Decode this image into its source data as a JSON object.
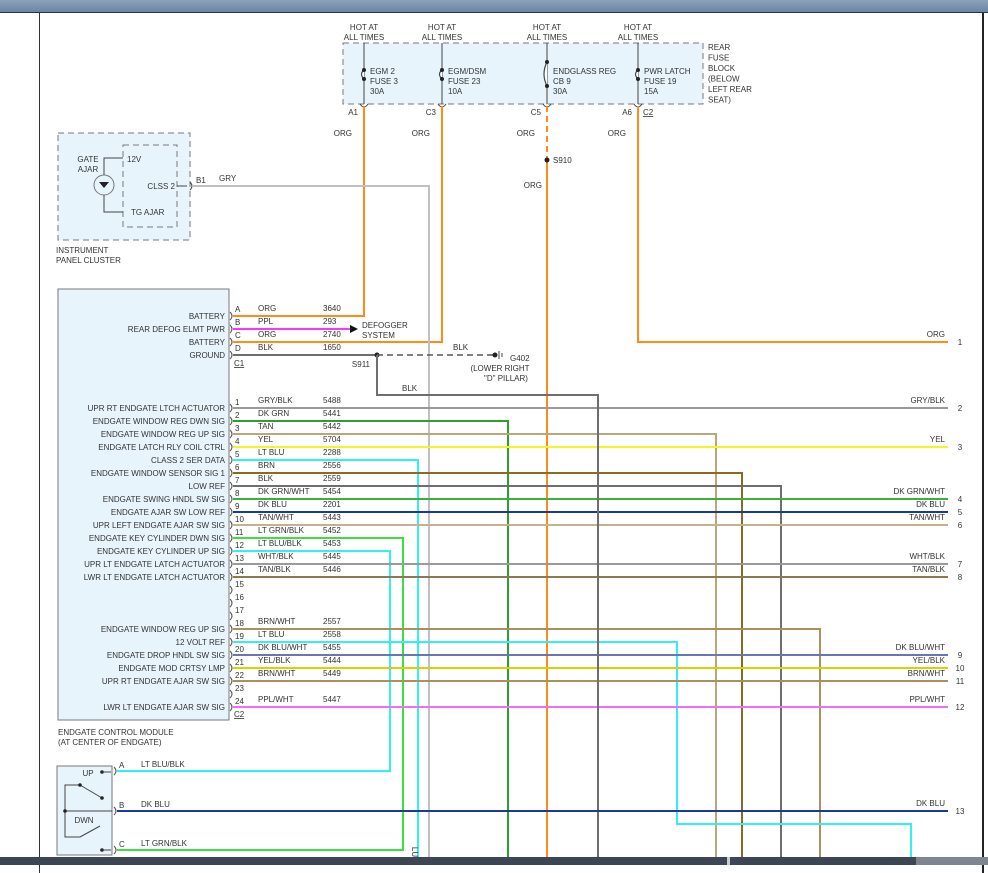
{
  "fuse_block": {
    "label_lines": [
      "REAR",
      "FUSE",
      "BLOCK",
      "(BELOW",
      "LEFT REAR",
      "SEAT)"
    ],
    "fuses": [
      {
        "hot": [
          "HOT AT",
          "ALL TIMES"
        ],
        "name": [
          "EGM 2",
          "FUSE 3",
          "30A"
        ],
        "terminal": "A1",
        "wire": "ORG"
      },
      {
        "hot": [
          "HOT AT",
          "ALL TIMES"
        ],
        "name": [
          "EGM/DSM",
          "FUSE 23",
          "10A"
        ],
        "terminal": "C3",
        "wire": "ORG"
      },
      {
        "hot": [
          "HOT AT",
          "ALL TIMES"
        ],
        "name": [
          "ENDGLASS REG",
          "CB 9",
          "30A"
        ],
        "terminal": "C5",
        "wire": "ORG"
      },
      {
        "hot": [
          "HOT AT",
          "ALL TIMES"
        ],
        "name": [
          "PWR LATCH",
          "FUSE 19",
          "15A"
        ],
        "terminal": "A6",
        "wire": "ORG"
      }
    ],
    "connector": "C2"
  },
  "splice_s910": {
    "name": "S910",
    "wire_below": "ORG"
  },
  "instrument_cluster": {
    "label_lines": [
      "INSTRUMENT",
      "PANEL CLUSTER"
    ],
    "lamp_label": [
      "GATE",
      "AJAR"
    ],
    "pin_12v": "12V",
    "pin_clss2": "CLSS 2",
    "pin_tg_ajar": "TG AJAR",
    "terminal": "B1",
    "wire": "GRY"
  },
  "ecm": {
    "label_lines": [
      "ENDGATE CONTROL MODULE",
      "(AT CENTER OF ENDGATE)"
    ],
    "connector_c1": "C1",
    "connector_c2": "C2",
    "pins": [
      {
        "pin": "A",
        "function": "BATTERY",
        "wire": "ORG",
        "circuit": "3640",
        "color": "#ff8c1a"
      },
      {
        "pin": "B",
        "function": "REAR DEFOG ELMT PWR",
        "wire": "PPL",
        "circuit": "293",
        "color": "#ff33ff"
      },
      {
        "pin": "C",
        "function": "BATTERY",
        "wire": "ORG",
        "circuit": "2740",
        "color": "#ff8c1a"
      },
      {
        "pin": "D",
        "function": "GROUND",
        "wire": "BLK",
        "circuit": "1650",
        "color": "#6e6e6e"
      },
      {
        "pin": "1",
        "function": "UPR RT ENDGATE LTCH ACTUATOR",
        "wire": "GRY/BLK",
        "circuit": "5488",
        "color": "#9a9a9a"
      },
      {
        "pin": "2",
        "function": "ENDGATE WINDOW REG DWN SIG",
        "wire": "DK GRN",
        "circuit": "5441",
        "color": "#2e9e2e"
      },
      {
        "pin": "3",
        "function": "ENDGATE WINDOW REG UP SIG",
        "wire": "TAN",
        "circuit": "5442",
        "color": "#b9a67a"
      },
      {
        "pin": "4",
        "function": "ENDGATE LATCH RLY COIL CTRL",
        "wire": "YEL",
        "circuit": "5704",
        "color": "#f5f522"
      },
      {
        "pin": "5",
        "function": "CLASS 2 SER DATA",
        "wire": "LT BLU",
        "circuit": "2288",
        "color": "#33f0f0"
      },
      {
        "pin": "6",
        "function": "ENDGATE WINDOW SENSOR SIG 1",
        "wire": "BRN",
        "circuit": "2556",
        "color": "#8b6a25"
      },
      {
        "pin": "7",
        "function": "LOW REF",
        "wire": "BLK",
        "circuit": "2559",
        "color": "#6e6e6e"
      },
      {
        "pin": "8",
        "function": "ENDGATE SWING HNDL SW SIG",
        "wire": "DK GRN/WHT",
        "circuit": "5454",
        "color": "#3cb03c"
      },
      {
        "pin": "9",
        "function": "ENDGATE AJAR SW LOW REF",
        "wire": "DK BLU",
        "circuit": "2201",
        "color": "#1a3a94"
      },
      {
        "pin": "10",
        "function": "UPR LEFT ENDGATE AJAR SW SIG",
        "wire": "TAN/WHT",
        "circuit": "5443",
        "color": "#c2b48a"
      },
      {
        "pin": "11",
        "function": "ENDGATE KEY CYLINDER DWN SIG",
        "wire": "LT GRN/BLK",
        "circuit": "5452",
        "color": "#3ce03c"
      },
      {
        "pin": "12",
        "function": "ENDGATE KEY CYLINDER UP SIG",
        "wire": "LT BLU/BLK",
        "circuit": "5453",
        "color": "#33f0f0"
      },
      {
        "pin": "13",
        "function": "UPR LT ENDGATE LATCH ACTUATOR",
        "wire": "WHT/BLK",
        "circuit": "5445",
        "color": "#9a9a9a"
      },
      {
        "pin": "14",
        "function": "LWR LT ENDGATE LATCH ACTUATOR",
        "wire": "TAN/BLK",
        "circuit": "5446",
        "color": "#8b7a50"
      },
      {
        "pin": "15",
        "function": "",
        "wire": "",
        "circuit": "",
        "color": ""
      },
      {
        "pin": "16",
        "function": "",
        "wire": "",
        "circuit": "",
        "color": ""
      },
      {
        "pin": "17",
        "function": "",
        "wire": "",
        "circuit": "",
        "color": ""
      },
      {
        "pin": "18",
        "function": "ENDGATE WINDOW REG UP SIG",
        "wire": "BRN/WHT",
        "circuit": "2557",
        "color": "#a89060"
      },
      {
        "pin": "19",
        "function": "12 VOLT REF",
        "wire": "LT BLU",
        "circuit": "2558",
        "color": "#33f0f0"
      },
      {
        "pin": "20",
        "function": "ENDGATE DROP HNDL SW SIG",
        "wire": "DK BLU/WHT",
        "circuit": "5455",
        "color": "#6677b8"
      },
      {
        "pin": "21",
        "function": "ENDGATE MOD CRTSY LMP",
        "wire": "YEL/BLK",
        "circuit": "5444",
        "color": "#d4d400"
      },
      {
        "pin": "22",
        "function": "UPR RT ENDGATE AJAR SW SIG",
        "wire": "BRN/WHT",
        "circuit": "5449",
        "color": "#a89060"
      },
      {
        "pin": "23",
        "function": "",
        "wire": "",
        "circuit": "",
        "color": ""
      },
      {
        "pin": "24",
        "function": "LWR LT ENDGATE AJAR SW SIG",
        "wire": "PPL/WHT",
        "circuit": "5447",
        "color": "#f070f0"
      }
    ]
  },
  "defogger": [
    "DEFOGGER",
    "SYSTEM"
  ],
  "ground": {
    "splice": "S911",
    "wire": "BLK",
    "wire_branch": "BLK",
    "name": "G402",
    "location": [
      "(LOWER RIGHT",
      "\"D\" PILLAR)"
    ]
  },
  "switch": {
    "up_label": "UP",
    "down_label": "DWN",
    "pins": [
      {
        "pin": "A",
        "wire": "LT BLU/BLK",
        "color": "#33f0f0"
      },
      {
        "pin": "B",
        "wire": "DK BLU",
        "color": "#1a3a94"
      },
      {
        "pin": "C",
        "wire": "LT GRN/BLK",
        "color": "#3ce03c"
      }
    ]
  },
  "cut_label": "LU",
  "right_connector": [
    {
      "number": "1",
      "wire": "ORG"
    },
    {
      "number": "2",
      "wire": "GRY/BLK"
    },
    {
      "number": "3",
      "wire": "YEL"
    },
    {
      "number": "4",
      "wire": "DK GRN/WHT"
    },
    {
      "number": "5",
      "wire": "DK BLU"
    },
    {
      "number": "6",
      "wire": "TAN/WHT"
    },
    {
      "number": "7",
      "wire": "WHT/BLK"
    },
    {
      "number": "8",
      "wire": "TAN/BLK"
    },
    {
      "number": "9",
      "wire": "DK BLU/WHT"
    },
    {
      "number": "10",
      "wire": "YEL/BLK"
    },
    {
      "number": "11",
      "wire": "BRN/WHT"
    },
    {
      "number": "12",
      "wire": "PPL/WHT"
    },
    {
      "number": "13",
      "wire": "DK BLU"
    }
  ],
  "colors": {
    "org": "#ff8c1a",
    "gry": "#c0c0c0",
    "blk": "#6e6e6e",
    "box_fill": "#e8f4fc"
  }
}
